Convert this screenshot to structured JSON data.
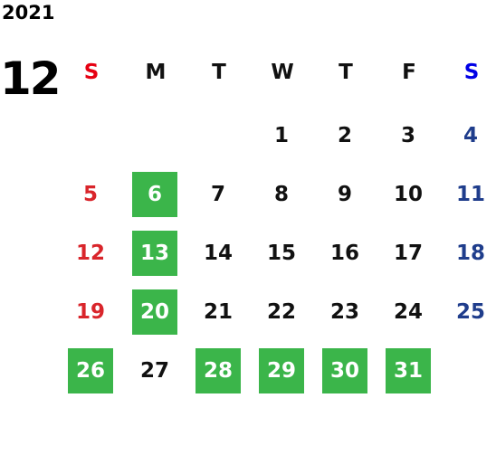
{
  "year": "2021",
  "month": "12",
  "weekdays": [
    "S",
    "M",
    "T",
    "W",
    "T",
    "F",
    "S"
  ],
  "weeks": [
    [
      null,
      null,
      null,
      1,
      2,
      3,
      4
    ],
    [
      5,
      6,
      7,
      8,
      9,
      10,
      11
    ],
    [
      12,
      13,
      14,
      15,
      16,
      17,
      18
    ],
    [
      19,
      20,
      21,
      22,
      23,
      24,
      25
    ],
    [
      26,
      27,
      28,
      29,
      30,
      31,
      null
    ]
  ],
  "highlighted": [
    6,
    13,
    20,
    26,
    28,
    29,
    30,
    31
  ],
  "colors": {
    "sunday_header": "#e60012",
    "saturday_header": "#0000e6",
    "sunday": "#d9252b",
    "saturday": "#1f3d8c",
    "weekday": "#111111",
    "highlight": "#3bb54a",
    "highlight_text": "#ffffff"
  }
}
